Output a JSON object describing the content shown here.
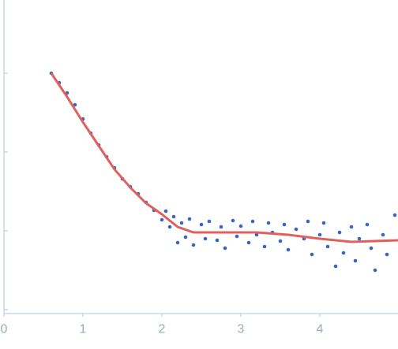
{
  "chart_data": {
    "type": "scatter",
    "xlim": [
      0,
      4.99
    ],
    "xticks": [
      0,
      1,
      2,
      3,
      4
    ],
    "ylim": [
      -0.05,
      3.93
    ],
    "yticks": [
      0,
      1,
      2,
      3
    ],
    "axis_color": "#b4c3d6",
    "tick_label_color": "#9aabc4",
    "series": [
      {
        "mode": "markers",
        "color": "#3866c4",
        "x": [
          0.6,
          0.7,
          0.8,
          0.9,
          1.0,
          1.1,
          1.2,
          1.3,
          1.4,
          1.5,
          1.6,
          1.7,
          1.8,
          1.9,
          2.0,
          2.05,
          2.1,
          2.15,
          2.2,
          2.25,
          2.3,
          2.35,
          2.4,
          2.5,
          2.55,
          2.6,
          2.7,
          2.75,
          2.8,
          2.9,
          2.95,
          3.0,
          3.1,
          3.15,
          3.2,
          3.3,
          3.35,
          3.4,
          3.5,
          3.55,
          3.6,
          3.7,
          3.8,
          3.85,
          3.9,
          4.0,
          4.05,
          4.1,
          4.2,
          4.25,
          4.3,
          4.4,
          4.45,
          4.5,
          4.6,
          4.65,
          4.7,
          4.8,
          4.85,
          4.95
        ],
        "values": [
          3.0,
          2.88,
          2.75,
          2.6,
          2.42,
          2.24,
          2.09,
          1.94,
          1.8,
          1.66,
          1.56,
          1.47,
          1.36,
          1.26,
          1.14,
          1.25,
          1.05,
          1.18,
          0.85,
          1.1,
          0.92,
          1.15,
          0.82,
          1.08,
          0.9,
          1.12,
          0.88,
          1.05,
          0.78,
          1.13,
          0.93,
          1.06,
          0.85,
          1.12,
          0.95,
          0.8,
          1.1,
          0.98,
          0.87,
          1.08,
          0.76,
          1.02,
          0.9,
          1.12,
          0.7,
          0.95,
          1.1,
          0.8,
          0.55,
          0.98,
          0.72,
          1.05,
          0.62,
          0.9,
          1.08,
          0.78,
          0.5,
          0.95,
          0.7,
          1.2
        ]
      },
      {
        "mode": "lines",
        "color": "#e0605e",
        "x": [
          0.6,
          0.8,
          1.0,
          1.2,
          1.4,
          1.6,
          1.8,
          2.0,
          2.2,
          2.4,
          2.8,
          3.2,
          3.6,
          4.0,
          4.4,
          4.99
        ],
        "values": [
          3.0,
          2.7,
          2.38,
          2.08,
          1.78,
          1.55,
          1.35,
          1.21,
          1.05,
          0.98,
          0.98,
          0.98,
          0.95,
          0.9,
          0.86,
          0.88
        ]
      }
    ]
  }
}
